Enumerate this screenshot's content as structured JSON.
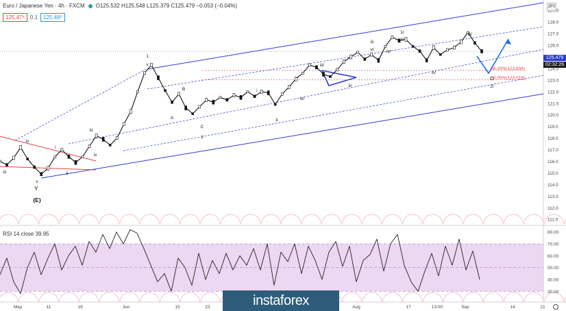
{
  "header": {
    "symbol": "Euro / Japanese Yen · 4h · FXCM",
    "ohlc": "O125.532 H125.548 L125.379 C125.479 −0.053 (−0.04%)",
    "bid": "125.47⁹",
    "spread": "0.1",
    "ask": "125.48⁰",
    "flag": "JPY"
  },
  "price_tags": {
    "last": "125.479",
    "countdown": "02:32:26"
  },
  "rsi_label": "RSI 14 close  39.95",
  "watermark": "instaforex",
  "colors": {
    "accent_blue": "#2a3bd6",
    "fib_red": "#e04040",
    "rsi_line": "#222222",
    "rsi_band": "#ecd8f2"
  },
  "chart_data": [
    {
      "type": "line",
      "title": "Euro / Japanese Yen · 4h · FXCM",
      "xlabel": "",
      "ylabel": "",
      "x_ticks": [
        "May",
        "11",
        "19",
        "Jun",
        "15",
        "23",
        "Jul",
        "Aug",
        "17",
        "13:00",
        "Sep",
        "14",
        "21"
      ],
      "y_ticks": [
        111.0,
        112.0,
        113.0,
        114.0,
        115.0,
        116.0,
        117.0,
        118.0,
        119.0,
        120.0,
        121.0,
        122.0,
        123.0,
        124.0,
        125.0,
        126.0,
        127.0,
        128.0,
        129.0
      ],
      "ylim": [
        110.6,
        129.9
      ],
      "series": [
        {
          "values": [
            116.0,
            115.7,
            116.3,
            117.2,
            116.2,
            115.5,
            114.9,
            115.4,
            116.4,
            117.0,
            116.4,
            115.9,
            116.4,
            117.3,
            118.2,
            117.9,
            117.4,
            118.0,
            119.2,
            120.3,
            122.0,
            123.6,
            124.3,
            123.2,
            122.1,
            121.1,
            121.8,
            120.6,
            120.1,
            120.7,
            121.3,
            121.1,
            121.5,
            121.3,
            121.7,
            121.5,
            122.0,
            121.6,
            122.0,
            121.9,
            120.9,
            121.8,
            122.4,
            123.1,
            123.6,
            124.3,
            124.1,
            123.5,
            123.3,
            123.9,
            124.6,
            125.0,
            125.4,
            124.8,
            125.2,
            124.7,
            125.9,
            126.7,
            126.4,
            126.5,
            125.9,
            125.5,
            124.7,
            125.8,
            125.2,
            125.6,
            125.8,
            126.3,
            127.1,
            126.2,
            125.48
          ]
        }
      ],
      "annotations": [
        {
          "text": "iii"
        },
        {
          "text": "iv"
        },
        {
          "text": "ii"
        },
        {
          "text": "i"
        },
        {
          "text": "iii"
        },
        {
          "text": "iv"
        },
        {
          "text": "v"
        },
        {
          "text": "Y"
        },
        {
          "text": "(E)"
        },
        {
          "text": "1"
        },
        {
          "text": "v"
        },
        {
          "text": "A"
        },
        {
          "text": "B"
        },
        {
          "text": "C"
        },
        {
          "text": "2"
        },
        {
          "text": "i"
        },
        {
          "text": "ii"
        },
        {
          "text": "iii/"
        },
        {
          "text": "iv/"
        },
        {
          "text": "ii/"
        },
        {
          "text": "iv/"
        },
        {
          "text": "iii"
        },
        {
          "text": "v/"
        },
        {
          "text": "1/"
        },
        {
          "text": "v/"
        },
        {
          "text": "A/"
        },
        {
          "text": "B/"
        },
        {
          "text": "C/"
        },
        {
          "text": "2/"
        }
      ],
      "levels": [
        {
          "label": "38.20%(123.834)",
          "value": 123.834
        },
        {
          "label": "50.00%(123.019)",
          "value": 123.019
        }
      ]
    },
    {
      "type": "line",
      "title": "RSI 14 close  39.95",
      "y_ticks": [
        30.0,
        40.0,
        50.0,
        60.0,
        70.0,
        80.0
      ],
      "ylim": [
        21.5,
        85.0
      ],
      "band": [
        30,
        70
      ],
      "series": [
        {
          "values": [
            44,
            58,
            38,
            28,
            50,
            63,
            44,
            58,
            70,
            48,
            60,
            68,
            52,
            72,
            63,
            78,
            66,
            80,
            70,
            82,
            79,
            66,
            52,
            38,
            45,
            30,
            58,
            50,
            35,
            62,
            40,
            56,
            45,
            62,
            48,
            60,
            52,
            66,
            48,
            70,
            35,
            63,
            55,
            70,
            45,
            68,
            56,
            40,
            63,
            72,
            51,
            68,
            38,
            56,
            61,
            74,
            47,
            70,
            78,
            52,
            38,
            30,
            47,
            62,
            43,
            68,
            52,
            74,
            48,
            64,
            40
          ]
        }
      ]
    }
  ]
}
